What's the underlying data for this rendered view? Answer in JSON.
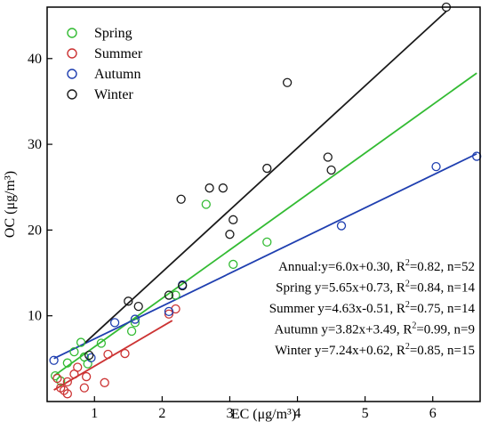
{
  "chart_data": {
    "type": "scatter",
    "xlabel": "EC (μg/m³)",
    "ylabel": "OC (μg/m³)",
    "xlim": [
      0.3,
      6.7
    ],
    "ylim": [
      0,
      46
    ],
    "x_ticks": [
      1,
      2,
      3,
      4,
      5,
      6
    ],
    "y_ticks": [
      10,
      20,
      30,
      40
    ],
    "legend_position": "top-left",
    "series": [
      {
        "name": "Spring",
        "color": "#33bb33",
        "points": [
          [
            0.42,
            3.0
          ],
          [
            0.5,
            2.4
          ],
          [
            0.6,
            4.5
          ],
          [
            0.7,
            5.8
          ],
          [
            0.8,
            6.9
          ],
          [
            0.85,
            5.2
          ],
          [
            0.9,
            4.4
          ],
          [
            1.1,
            6.8
          ],
          [
            1.55,
            8.2
          ],
          [
            1.6,
            9.2
          ],
          [
            2.2,
            12.4
          ],
          [
            2.65,
            23.0
          ],
          [
            3.05,
            16.0
          ],
          [
            3.55,
            18.6
          ]
        ],
        "fit": {
          "slope": 5.65,
          "intercept": 0.73,
          "x_range": [
            0.4,
            6.65
          ]
        }
      },
      {
        "name": "Summer",
        "color": "#cc3333",
        "points": [
          [
            0.45,
            2.7
          ],
          [
            0.5,
            1.6
          ],
          [
            0.55,
            1.3
          ],
          [
            0.6,
            2.3
          ],
          [
            0.6,
            0.9
          ],
          [
            0.7,
            3.2
          ],
          [
            0.75,
            4.0
          ],
          [
            0.85,
            1.6
          ],
          [
            0.88,
            2.9
          ],
          [
            1.15,
            2.2
          ],
          [
            1.2,
            5.5
          ],
          [
            1.45,
            5.6
          ],
          [
            2.1,
            10.2
          ],
          [
            2.2,
            10.8
          ]
        ],
        "fit": {
          "slope": 4.63,
          "intercept": -0.51,
          "x_range": [
            0.4,
            2.15
          ]
        }
      },
      {
        "name": "Autumn",
        "color": "#1f3fb0",
        "points": [
          [
            0.4,
            4.8
          ],
          [
            0.95,
            5.1
          ],
          [
            1.3,
            9.2
          ],
          [
            1.6,
            9.6
          ],
          [
            2.1,
            10.5
          ],
          [
            2.3,
            13.6
          ],
          [
            4.65,
            20.5
          ],
          [
            6.05,
            27.4
          ],
          [
            6.65,
            28.6
          ]
        ],
        "fit": {
          "slope": 3.82,
          "intercept": 3.49,
          "x_range": [
            0.4,
            6.65
          ]
        }
      },
      {
        "name": "Winter",
        "color": "#1a1a1a",
        "points": [
          [
            0.92,
            5.4
          ],
          [
            1.5,
            11.7
          ],
          [
            1.65,
            11.1
          ],
          [
            2.1,
            12.4
          ],
          [
            2.28,
            23.6
          ],
          [
            2.3,
            13.5
          ],
          [
            2.7,
            24.9
          ],
          [
            2.9,
            24.9
          ],
          [
            3.0,
            19.5
          ],
          [
            3.05,
            21.2
          ],
          [
            3.55,
            27.2
          ],
          [
            3.85,
            37.2
          ],
          [
            4.45,
            28.5
          ],
          [
            4.5,
            27.0
          ],
          [
            6.2,
            46.0
          ]
        ],
        "fit": {
          "slope": 7.24,
          "intercept": 0.62,
          "x_range": [
            0.85,
            6.2
          ]
        }
      }
    ],
    "annotations": [
      {
        "lead": "Annual:y=6.0x+0.30, R",
        "sup": "2",
        "tail": "=0.82, n=52"
      },
      {
        "lead": "Spring y=5.65x+0.73, R",
        "sup": "2",
        "tail": "=0.84, n=14"
      },
      {
        "lead": "Summer y=4.63x-0.51, R",
        "sup": "2",
        "tail": "=0.75, n=14"
      },
      {
        "lead": "Autumn y=3.82x+3.49, R",
        "sup": "2",
        "tail": "=0.99, n=9"
      },
      {
        "lead": "Winter y=7.24x+0.62, R",
        "sup": "2",
        "tail": "=0.85, n=15"
      }
    ]
  }
}
